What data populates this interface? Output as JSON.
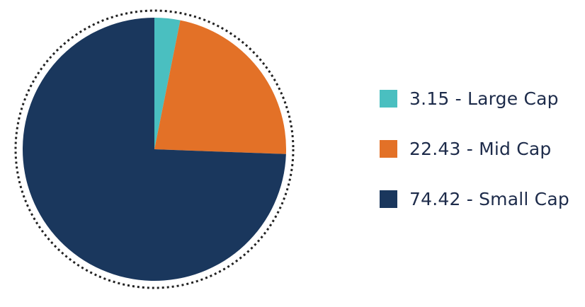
{
  "chart_data": {
    "type": "pie",
    "slices": [
      {
        "value": 3.15,
        "label": "Large Cap",
        "legend": "3.15 - Large Cap",
        "color": "#4abfc0"
      },
      {
        "value": 22.43,
        "label": "Mid Cap",
        "legend": "22.43 - Mid Cap",
        "color": "#e37127"
      },
      {
        "value": 74.42,
        "label": "Small Cap",
        "legend": "74.42 - Small Cap",
        "color": "#1a375d"
      }
    ],
    "start_angle": "top (12 o'clock)",
    "direction": "clockwise",
    "outline": "dotted circle",
    "legend_position": "right"
  }
}
